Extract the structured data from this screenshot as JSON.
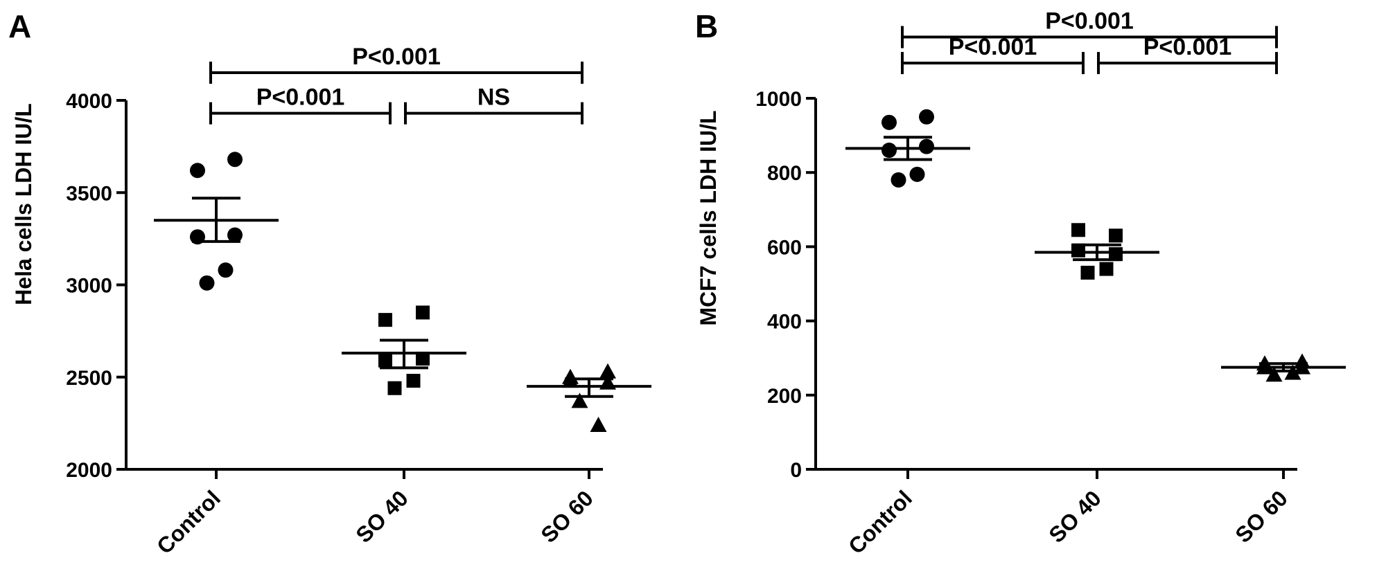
{
  "chart_data": [
    {
      "panel_label": "A",
      "type": "scatter",
      "categories": [
        "Control",
        "SO 40",
        "SO 60"
      ],
      "ylabel": "Hela cells LDH IU/L",
      "ylim": [
        2000,
        4000
      ],
      "yticks": [
        2000,
        2500,
        3000,
        3500,
        4000
      ],
      "groups": [
        {
          "category": "Control",
          "marker": "circle",
          "points": [
            3620,
            3680,
            3260,
            3270,
            3010,
            3080
          ],
          "mean": 3350,
          "sem_upper": 3470,
          "sem_lower": 3235
        },
        {
          "category": "SO 40",
          "marker": "square",
          "points": [
            2810,
            2850,
            2590,
            2600,
            2440,
            2480
          ],
          "mean": 2630,
          "sem_upper": 2700,
          "sem_lower": 2550
        },
        {
          "category": "SO 60",
          "marker": "triangle",
          "points": [
            2500,
            2530,
            2480,
            2470,
            2370,
            2240
          ],
          "mean": 2450,
          "sem_upper": 2490,
          "sem_lower": 2395
        }
      ],
      "annotations": [
        {
          "from": "Control",
          "to": "SO 60",
          "text": "P<0.001",
          "level": 4150
        },
        {
          "from": "Control",
          "to": "SO 40",
          "text": "P<0.001",
          "level": 3930
        },
        {
          "from": "SO 40",
          "to": "SO 60",
          "text": "NS",
          "level": 3930
        }
      ]
    },
    {
      "panel_label": "B",
      "type": "scatter",
      "categories": [
        "Control",
        "SO 40",
        "SO 60"
      ],
      "ylabel": "MCF7 cells LDH IU/L",
      "ylim": [
        0,
        1000
      ],
      "yticks": [
        0,
        200,
        400,
        600,
        800,
        1000
      ],
      "groups": [
        {
          "category": "Control",
          "marker": "circle",
          "points": [
            935,
            950,
            860,
            870,
            780,
            795
          ],
          "mean": 865,
          "sem_upper": 895,
          "sem_lower": 835
        },
        {
          "category": "SO 40",
          "marker": "square",
          "points": [
            645,
            630,
            590,
            580,
            530,
            540
          ],
          "mean": 585,
          "sem_upper": 605,
          "sem_lower": 565
        },
        {
          "category": "SO 60",
          "marker": "triangle",
          "points": [
            285,
            290,
            275,
            275,
            255,
            260
          ],
          "mean": 275,
          "sem_upper": 285,
          "sem_lower": 265
        }
      ],
      "annotations": [
        {
          "from": "Control",
          "to": "SO 60",
          "text": "P<0.001",
          "level": 1165
        },
        {
          "from": "Control",
          "to": "SO 40",
          "text": "P<0.001",
          "level": 1095
        },
        {
          "from": "SO 40",
          "to": "SO 60",
          "text": "P<0.001",
          "level": 1095
        }
      ]
    }
  ]
}
